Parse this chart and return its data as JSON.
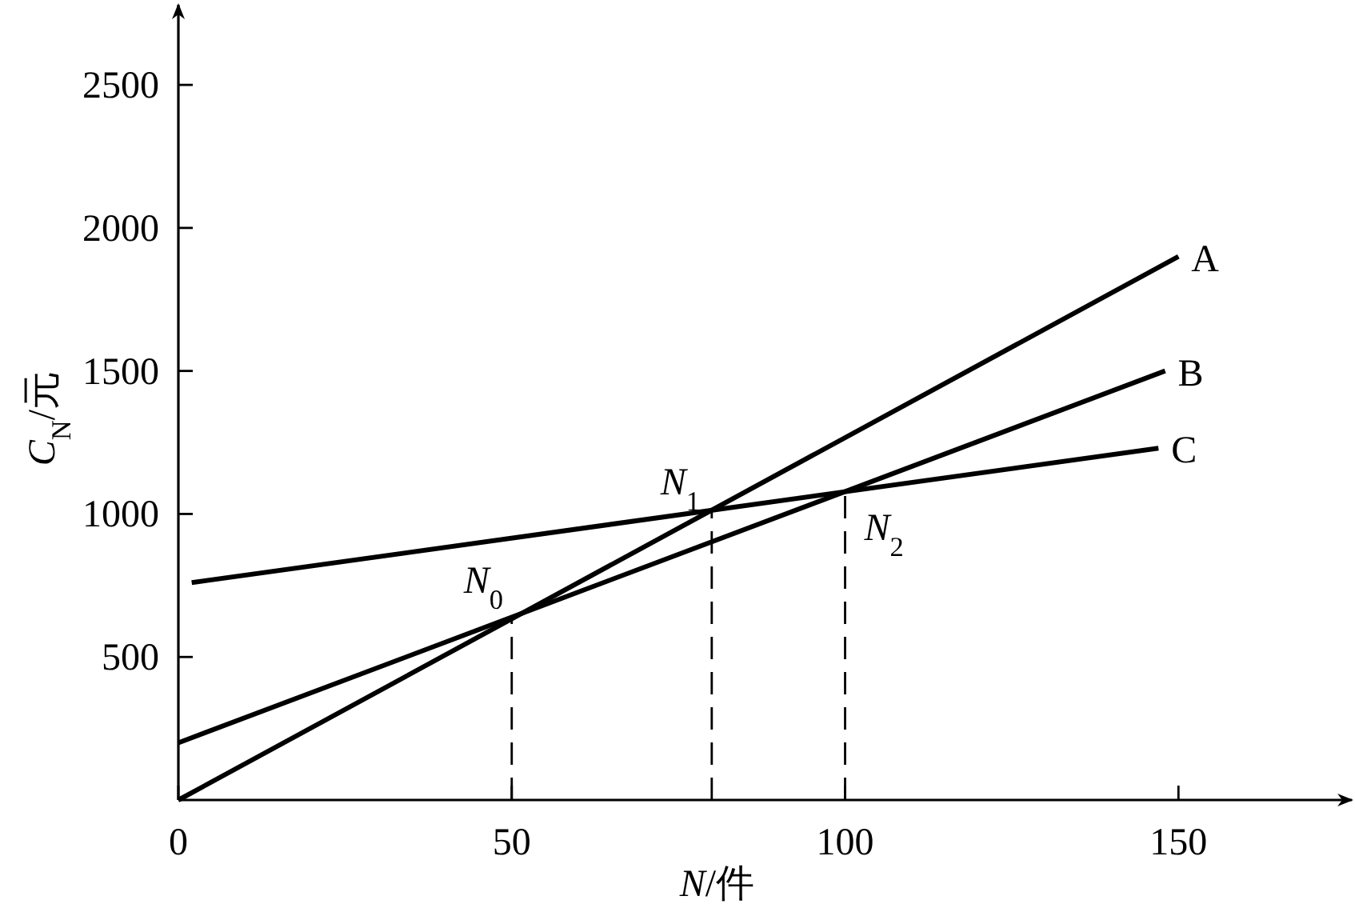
{
  "chart_data": {
    "type": "line",
    "xlabel": "*N*/件",
    "ylabel": "*C*$_{N}$/元",
    "xlim": [
      0,
      176
    ],
    "ylim": [
      0,
      2780
    ],
    "xticks": [
      0,
      50,
      100,
      150
    ],
    "yticks": [
      500,
      1000,
      1500,
      2000,
      2500
    ],
    "series": [
      {
        "name": "A",
        "color": "#000000",
        "x": [
          0,
          150
        ],
        "values": [
          0,
          1900
        ]
      },
      {
        "name": "B",
        "color": "#000000",
        "x": [
          0,
          148
        ],
        "values": [
          200,
          1500
        ]
      },
      {
        "name": "C",
        "color": "#000000",
        "x": [
          2,
          147
        ],
        "values": [
          760,
          1230
        ]
      },
      {
        "color": "#000000",
        "x": [
          50,
          50
        ],
        "values": [
          0,
          635
        ],
        "line_style": "dashed"
      },
      {
        "color": "#000000",
        "x": [
          80,
          80
        ],
        "values": [
          0,
          1013
        ],
        "line_style": "dashed"
      },
      {
        "color": "#000000",
        "x": [
          100,
          100
        ],
        "values": [
          0,
          1078
        ],
        "line_style": "dashed"
      }
    ],
    "annotations": [
      {
        "text": "*N*$_{0}$",
        "x": 50,
        "y": 635
      },
      {
        "text": "*N*$_{1}$",
        "x": 80,
        "y": 1013
      },
      {
        "text": "*N*$_{2}$",
        "x": 100,
        "y": 1078
      }
    ]
  }
}
